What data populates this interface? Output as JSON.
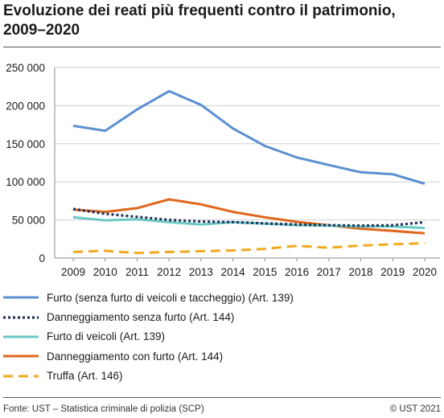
{
  "chart_data": {
    "type": "line",
    "title": "Evoluzione dei reati più frequenti contro il patrimonio, 2009–2020",
    "x": [
      "2009",
      "2010",
      "2011",
      "2012",
      "2013",
      "2014",
      "2015",
      "2016",
      "2017",
      "2018",
      "2019",
      "2020"
    ],
    "y_ticks": [
      "0",
      "50 000",
      "100 000",
      "150 000",
      "200 000",
      "250 000"
    ],
    "ylim": [
      0,
      250000
    ],
    "grid": true,
    "legend_position": "bottom",
    "series": [
      {
        "name": "Furto (senza furto di veicoli e taccheggio) (Art. 139)",
        "color": "#5b8fcf",
        "style": "solid",
        "values": [
          173500,
          167000,
          195000,
          219000,
          201000,
          170000,
          147000,
          132000,
          122000,
          112500,
          110000,
          97500
        ]
      },
      {
        "name": "Danneggiamento senza furto (Art. 144)",
        "color": "#22335f",
        "style": "dotted",
        "values": [
          64500,
          58000,
          54000,
          50000,
          48000,
          47000,
          45500,
          44000,
          43000,
          42500,
          43000,
          47000
        ]
      },
      {
        "name": "Furto di veicoli (Art. 139)",
        "color": "#6bc9c3",
        "style": "solid",
        "values": [
          53500,
          49500,
          51000,
          47000,
          44000,
          47000,
          45000,
          43000,
          42500,
          41500,
          41500,
          39500
        ]
      },
      {
        "name": "Danneggiamento con furto (Art. 144)",
        "color": "#e0661c",
        "style": "solid",
        "values": [
          63500,
          60500,
          65500,
          77000,
          70500,
          60500,
          53500,
          47500,
          43000,
          38500,
          35500,
          32500
        ]
      },
      {
        "name": "Truffa (Art. 146)",
        "color": "#f2a81d",
        "style": "dashed",
        "values": [
          8000,
          9500,
          6500,
          8000,
          9000,
          10000,
          12000,
          16000,
          13500,
          16500,
          18000,
          19500
        ]
      }
    ]
  },
  "footer": {
    "source": "Fonte: UST – Statistica criminale di polizia (SCP)",
    "copyright": "© UST 2021"
  }
}
